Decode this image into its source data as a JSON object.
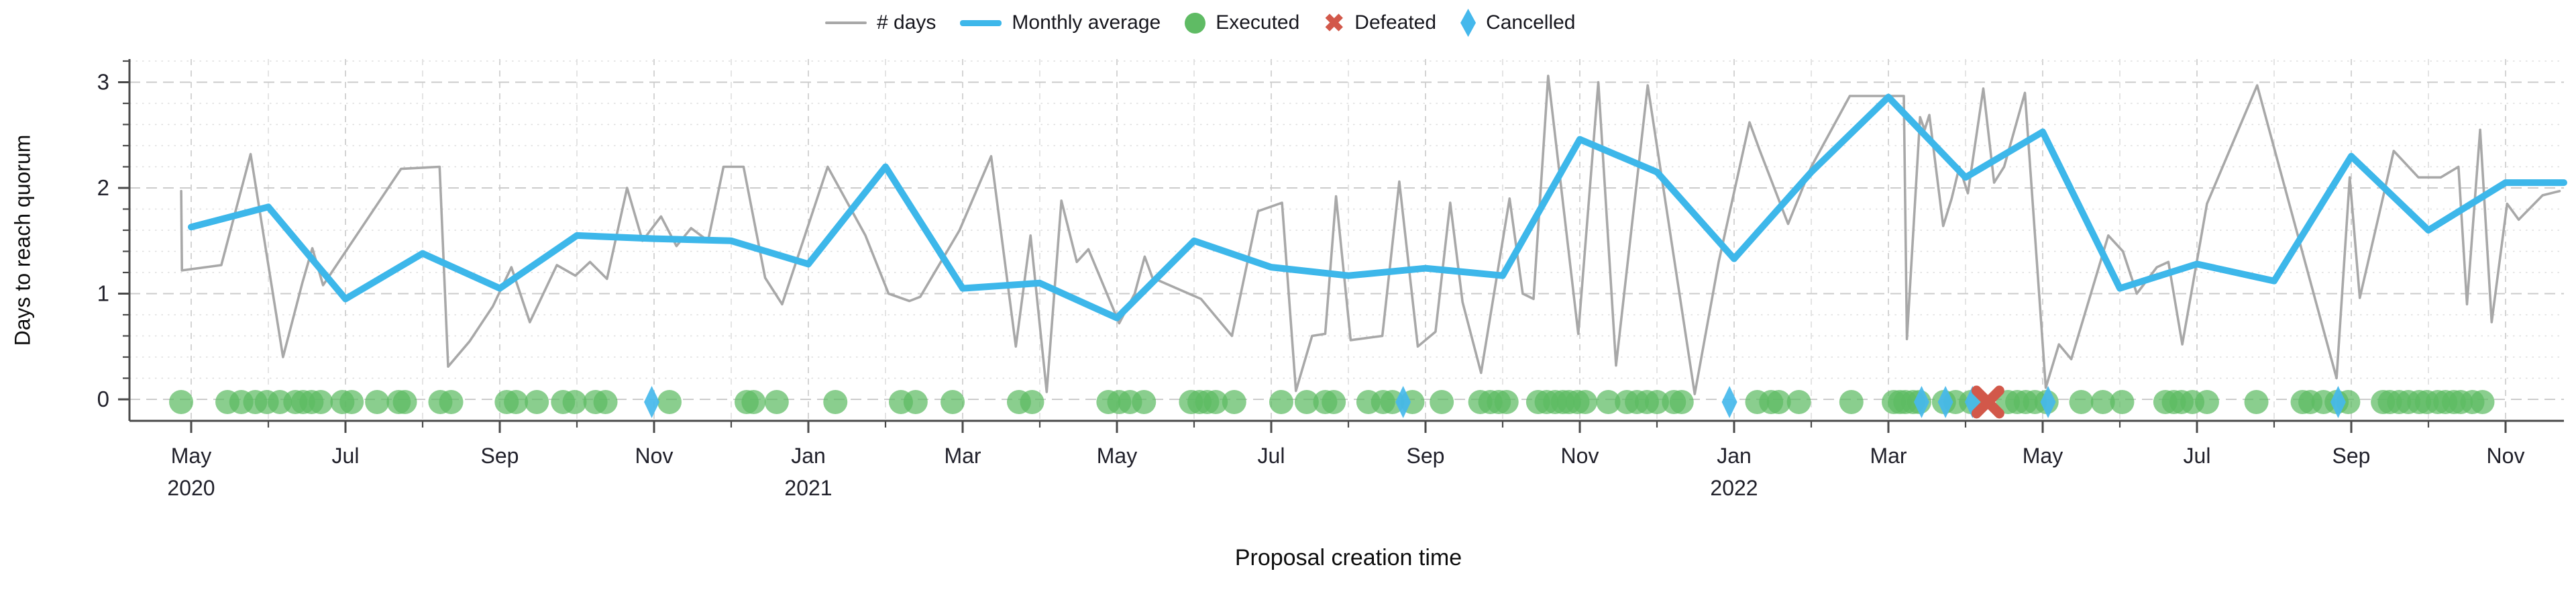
{
  "axis": {
    "x_title": "Proposal creation time",
    "y_title": "Days to reach quorum"
  },
  "legend": {
    "items": [
      {
        "label": "# days",
        "type": "line",
        "color": "#a8a8a8"
      },
      {
        "label": "Monthly average",
        "type": "thick-line",
        "color": "#3db7ea"
      },
      {
        "label": "Executed",
        "type": "circle",
        "color": "#5fbb64"
      },
      {
        "label": "Defeated",
        "type": "x",
        "color": "#d2584a"
      },
      {
        "label": "Cancelled",
        "type": "diamond",
        "color": "#45b8ec"
      }
    ]
  },
  "chart_data": {
    "type": "line",
    "xlabel": "Proposal creation time",
    "ylabel": "Days to reach quorum",
    "ylim": [
      -0.2,
      3.2
    ],
    "yticks": [
      0,
      1,
      2,
      3
    ],
    "y_minor_step": 0.2,
    "x_months_start": "2020-05",
    "x_months_end": "2022-11",
    "grid": "dashed-major-dotted-minor",
    "legend_position": "top-center",
    "x_ticks": [
      {
        "month_index": 0,
        "label": "May",
        "year": "2020"
      },
      {
        "month_index": 2,
        "label": "Jul"
      },
      {
        "month_index": 4,
        "label": "Sep"
      },
      {
        "month_index": 6,
        "label": "Nov"
      },
      {
        "month_index": 8,
        "label": "Jan",
        "year": "2021"
      },
      {
        "month_index": 10,
        "label": "Mar"
      },
      {
        "month_index": 12,
        "label": "May"
      },
      {
        "month_index": 14,
        "label": "Jul"
      },
      {
        "month_index": 16,
        "label": "Sep"
      },
      {
        "month_index": 18,
        "label": "Nov"
      },
      {
        "month_index": 20,
        "label": "Jan",
        "year": "2022"
      },
      {
        "month_index": 22,
        "label": "Mar"
      },
      {
        "month_index": 24,
        "label": "May"
      },
      {
        "month_index": 26,
        "label": "Jul"
      },
      {
        "month_index": 28,
        "label": "Sep"
      },
      {
        "month_index": 30,
        "label": "Nov"
      }
    ],
    "series": [
      {
        "name": "Monthly average",
        "color": "#3db7ea",
        "months": [
          "May20",
          "Jun20",
          "Jul20",
          "Aug20",
          "Sep20",
          "Oct20",
          "Nov20",
          "Dec20",
          "Jan21",
          "Feb21",
          "Mar21",
          "Apr21",
          "May21",
          "Jun21",
          "Jul21",
          "Aug21",
          "Sep21",
          "Oct21",
          "Nov21",
          "Dec21",
          "Jan22",
          "Feb22",
          "Mar22",
          "Apr22",
          "May22",
          "Jun22",
          "Jul22",
          "Aug22",
          "Sep22",
          "Oct22",
          "Nov22"
        ],
        "values": [
          1.63,
          1.82,
          0.95,
          1.38,
          1.05,
          1.55,
          1.52,
          1.5,
          1.28,
          2.2,
          1.05,
          1.1,
          0.77,
          1.5,
          1.25,
          1.17,
          1.24,
          1.17,
          2.46,
          2.15,
          1.33,
          2.15,
          2.86,
          2.1,
          2.53,
          1.05,
          1.28,
          1.12,
          2.3,
          1.6,
          2.05
        ],
        "tail_flat_to_plot_right": true
      },
      {
        "name": "# days",
        "color": "#a8a8a8",
        "points": [
          [
            -0.13,
            1.97
          ],
          [
            -0.12,
            1.22
          ],
          [
            0.39,
            1.27
          ],
          [
            0.77,
            2.32
          ],
          [
            1.19,
            0.4
          ],
          [
            1.44,
            1.1
          ],
          [
            1.57,
            1.43
          ],
          [
            1.71,
            1.08
          ],
          [
            2.72,
            2.18
          ],
          [
            3.22,
            2.2
          ],
          [
            3.33,
            0.31
          ],
          [
            3.61,
            0.55
          ],
          [
            3.91,
            0.88
          ],
          [
            4.15,
            1.25
          ],
          [
            4.39,
            0.73
          ],
          [
            4.74,
            1.27
          ],
          [
            4.98,
            1.17
          ],
          [
            5.17,
            1.3
          ],
          [
            5.39,
            1.14
          ],
          [
            5.65,
            2.0
          ],
          [
            5.85,
            1.5
          ],
          [
            6.09,
            1.73
          ],
          [
            6.29,
            1.45
          ],
          [
            6.48,
            1.62
          ],
          [
            6.7,
            1.5
          ],
          [
            6.9,
            2.2
          ],
          [
            7.16,
            2.2
          ],
          [
            7.44,
            1.15
          ],
          [
            7.66,
            0.9
          ],
          [
            8.25,
            2.2
          ],
          [
            8.74,
            1.55
          ],
          [
            9.04,
            1.0
          ],
          [
            9.31,
            0.93
          ],
          [
            9.45,
            0.97
          ],
          [
            9.96,
            1.6
          ],
          [
            10.37,
            2.3
          ],
          [
            10.69,
            0.5
          ],
          [
            10.88,
            1.55
          ],
          [
            11.09,
            0.07
          ],
          [
            11.28,
            1.88
          ],
          [
            11.48,
            1.3
          ],
          [
            11.63,
            1.42
          ],
          [
            12.03,
            0.72
          ],
          [
            12.23,
            1.0
          ],
          [
            12.36,
            1.35
          ],
          [
            12.46,
            1.15
          ],
          [
            13.09,
            0.95
          ],
          [
            13.49,
            0.6
          ],
          [
            13.83,
            1.78
          ],
          [
            14.14,
            1.86
          ],
          [
            14.32,
            0.08
          ],
          [
            14.53,
            0.6
          ],
          [
            14.7,
            0.62
          ],
          [
            14.84,
            1.92
          ],
          [
            15.03,
            0.56
          ],
          [
            15.44,
            0.6
          ],
          [
            15.66,
            2.06
          ],
          [
            15.9,
            0.5
          ],
          [
            16.13,
            0.64
          ],
          [
            16.32,
            1.86
          ],
          [
            16.48,
            0.92
          ],
          [
            16.72,
            0.25
          ],
          [
            17.09,
            1.9
          ],
          [
            17.26,
            1.0
          ],
          [
            17.4,
            0.95
          ],
          [
            17.59,
            3.06
          ],
          [
            17.98,
            0.62
          ],
          [
            18.24,
            3.0
          ],
          [
            18.47,
            0.32
          ],
          [
            18.88,
            2.97
          ],
          [
            19.49,
            0.05
          ],
          [
            19.8,
            1.3
          ],
          [
            20.2,
            2.62
          ],
          [
            20.33,
            2.36
          ],
          [
            20.7,
            1.66
          ],
          [
            21.0,
            2.2
          ],
          [
            21.5,
            2.87
          ],
          [
            22.2,
            2.87
          ],
          [
            22.24,
            0.57
          ],
          [
            22.41,
            2.67
          ],
          [
            22.47,
            2.55
          ],
          [
            22.53,
            2.69
          ],
          [
            22.71,
            1.64
          ],
          [
            22.82,
            1.9
          ],
          [
            22.92,
            2.2
          ],
          [
            23.03,
            1.95
          ],
          [
            23.23,
            2.94
          ],
          [
            23.37,
            2.05
          ],
          [
            23.5,
            2.2
          ],
          [
            23.77,
            2.9
          ],
          [
            24.04,
            0.11
          ],
          [
            24.21,
            0.52
          ],
          [
            24.37,
            0.38
          ],
          [
            24.85,
            1.55
          ],
          [
            25.04,
            1.4
          ],
          [
            25.22,
            1.0
          ],
          [
            25.48,
            1.25
          ],
          [
            25.63,
            1.3
          ],
          [
            25.81,
            0.52
          ],
          [
            26.13,
            1.85
          ],
          [
            26.78,
            2.97
          ],
          [
            27.81,
            0.2
          ],
          [
            27.98,
            2.1
          ],
          [
            28.11,
            0.96
          ],
          [
            28.55,
            2.35
          ],
          [
            28.87,
            2.1
          ],
          [
            29.16,
            2.1
          ],
          [
            29.39,
            2.2
          ],
          [
            29.5,
            0.9
          ],
          [
            29.67,
            2.55
          ],
          [
            29.82,
            0.73
          ],
          [
            30.02,
            1.85
          ],
          [
            30.17,
            1.7
          ],
          [
            30.48,
            1.93
          ],
          [
            30.7,
            1.97
          ]
        ]
      }
    ],
    "markers": {
      "executed": {
        "label": "Executed",
        "color": "#5dbb63",
        "shape": "circle",
        "y": 0,
        "x_months": [
          -0.13,
          0.47,
          0.65,
          0.83,
          0.98,
          1.15,
          1.35,
          1.45,
          1.56,
          1.68,
          1.96,
          2.08,
          2.41,
          2.69,
          2.77,
          3.23,
          3.37,
          4.09,
          4.21,
          4.48,
          4.82,
          4.97,
          5.24,
          5.37,
          6.2,
          7.2,
          7.29,
          7.59,
          8.35,
          9.2,
          9.39,
          9.87,
          10.73,
          10.9,
          11.89,
          12.03,
          12.17,
          12.35,
          12.96,
          13.07,
          13.17,
          13.28,
          13.52,
          14.13,
          14.46,
          14.7,
          14.81,
          15.26,
          15.45,
          15.57,
          15.83,
          16.21,
          16.71,
          16.84,
          16.95,
          17.05,
          17.46,
          17.57,
          17.68,
          17.78,
          17.86,
          17.97,
          18.07,
          18.37,
          18.61,
          18.74,
          18.87,
          19.0,
          19.22,
          19.32,
          20.3,
          20.48,
          20.58,
          20.84,
          21.52,
          22.07,
          22.15,
          22.22,
          22.32,
          22.4,
          22.72,
          22.87,
          23.07,
          23.55,
          23.67,
          23.78,
          23.9,
          24.05,
          24.5,
          24.78,
          25.03,
          25.59,
          25.7,
          25.8,
          25.94,
          26.13,
          26.77,
          27.37,
          27.47,
          27.64,
          27.81,
          27.96,
          28.41,
          28.5,
          28.62,
          28.74,
          28.88,
          28.98,
          29.12,
          29.22,
          29.33,
          29.42,
          29.57,
          29.7
        ]
      },
      "defeated": {
        "label": "Defeated",
        "color": "#d2584a",
        "shape": "x",
        "y": 0,
        "x_months": [
          23.29
        ]
      },
      "cancelled": {
        "label": "Cancelled",
        "color": "#45b8ec",
        "shape": "diamond",
        "y": 0,
        "x_months": [
          5.97,
          15.71,
          19.94,
          22.43,
          22.74,
          23.09,
          24.07,
          27.83
        ]
      }
    }
  }
}
